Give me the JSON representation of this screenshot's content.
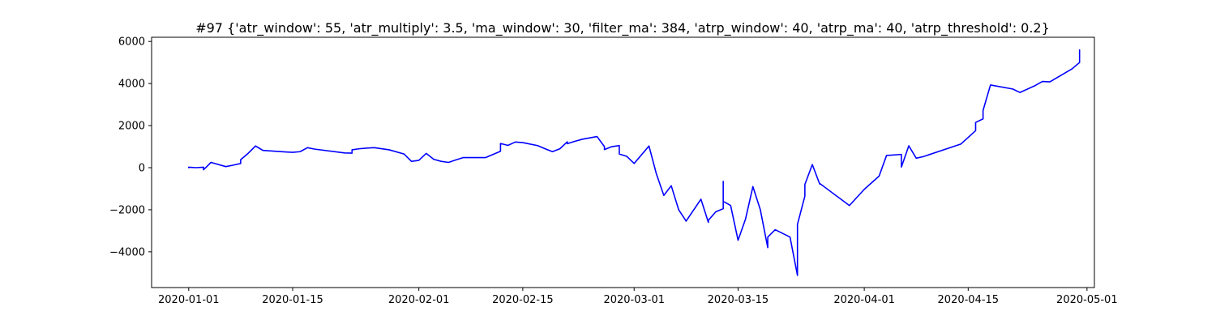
{
  "chart_data": {
    "type": "line",
    "title": "#97 {'atr_window': 55, 'atr_multiply': 3.5, 'ma_window': 30, 'filter_ma': 384, 'atrp_window': 40, 'atrp_ma': 40, 'atrp_threshold': 0.2}",
    "xlabel": "",
    "ylabel": "",
    "x_ticks": [
      "2020-01-01",
      "2020-01-15",
      "2020-02-01",
      "2020-02-15",
      "2020-03-01",
      "2020-03-15",
      "2020-04-01",
      "2020-04-15",
      "2020-05-01"
    ],
    "y_ticks": [
      -4000,
      -2000,
      0,
      2000,
      4000,
      6000
    ],
    "xlim": [
      "2019-12-27",
      "2020-05-02"
    ],
    "ylim": [
      -5700,
      6200
    ],
    "grid": false,
    "line_color": "#0000ff",
    "series": [
      {
        "x": [
          "2020-01-01",
          "2020-01-01",
          "2020-01-02",
          "2020-01-03",
          "2020-01-03",
          "2020-01-04",
          "2020-01-06",
          "2020-01-06",
          "2020-01-07",
          "2020-01-08",
          "2020-01-08",
          "2020-01-09",
          "2020-01-10",
          "2020-01-11",
          "2020-01-14",
          "2020-01-15",
          "2020-01-16",
          "2020-01-17",
          "2020-01-18",
          "2020-01-22",
          "2020-01-23",
          "2020-01-23",
          "2020-01-24",
          "2020-01-25",
          "2020-01-26",
          "2020-01-28",
          "2020-01-30",
          "2020-01-31",
          "2020-02-01",
          "2020-02-01",
          "2020-02-02",
          "2020-02-03",
          "2020-02-04",
          "2020-02-05",
          "2020-02-06",
          "2020-02-07",
          "2020-02-10",
          "2020-02-12",
          "2020-02-12",
          "2020-02-13",
          "2020-02-14",
          "2020-02-15",
          "2020-02-17",
          "2020-02-18",
          "2020-02-19",
          "2020-02-20",
          "2020-02-21",
          "2020-02-21",
          "2020-02-22",
          "2020-02-23",
          "2020-02-25",
          "2020-02-26",
          "2020-02-26",
          "2020-02-27",
          "2020-02-28",
          "2020-02-28",
          "2020-02-29",
          "2020-03-01",
          "2020-03-03",
          "2020-03-04",
          "2020-03-05",
          "2020-03-06",
          "2020-03-07",
          "2020-03-08",
          "2020-03-10",
          "2020-03-11",
          "2020-03-11",
          "2020-03-12",
          "2020-03-13",
          "2020-03-13",
          "2020-03-13",
          "2020-03-14",
          "2020-03-15",
          "2020-03-16",
          "2020-03-17",
          "2020-03-18",
          "2020-03-19",
          "2020-03-19",
          "2020-03-20",
          "2020-03-22",
          "2020-03-23",
          "2020-03-23",
          "2020-03-24",
          "2020-03-24",
          "2020-03-25",
          "2020-03-26",
          "2020-03-26",
          "2020-03-30",
          "2020-04-01",
          "2020-04-03",
          "2020-04-04",
          "2020-04-06",
          "2020-04-06",
          "2020-04-07",
          "2020-04-08",
          "2020-04-09",
          "2020-04-14",
          "2020-04-16",
          "2020-04-16",
          "2020-04-17",
          "2020-04-17",
          "2020-04-18",
          "2020-04-21",
          "2020-04-22",
          "2020-04-22",
          "2020-04-24",
          "2020-04-25",
          "2020-04-26",
          "2020-04-29",
          "2020-04-30",
          "2020-04-30"
        ],
        "y": [
          0,
          20,
          0,
          20,
          -100,
          250,
          50,
          50,
          120,
          200,
          380,
          680,
          1030,
          820,
          750,
          730,
          760,
          950,
          880,
          700,
          690,
          850,
          900,
          930,
          950,
          850,
          650,
          300,
          350,
          350,
          680,
          400,
          300,
          250,
          370,
          480,
          480,
          780,
          1150,
          1060,
          1220,
          1190,
          1050,
          900,
          760,
          900,
          1230,
          1140,
          1250,
          1350,
          1480,
          1000,
          860,
          1000,
          1050,
          650,
          540,
          200,
          1030,
          -300,
          -1320,
          -860,
          -2000,
          -2540,
          -1500,
          -2600,
          -2500,
          -2100,
          -1950,
          -650,
          -1600,
          -1800,
          -3450,
          -2450,
          -900,
          -2000,
          -3800,
          -3300,
          -2950,
          -3300,
          -5120,
          -2700,
          -1350,
          -800,
          150,
          -780,
          -750,
          -1800,
          -1030,
          -400,
          580,
          630,
          30,
          1040,
          450,
          530,
          1120,
          1760,
          2150,
          2320,
          2720,
          3930,
          3740,
          3570,
          3580,
          3900,
          4100,
          4080,
          4700,
          5000,
          5600
        ]
      }
    ]
  }
}
